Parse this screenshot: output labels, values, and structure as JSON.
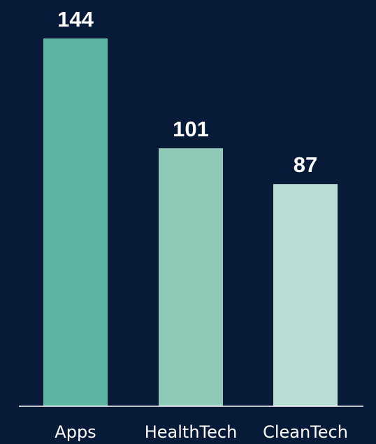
{
  "chart_data": {
    "type": "bar",
    "title": "",
    "xlabel": "",
    "ylabel": "",
    "categories": [
      "Apps",
      "HealthTech",
      "CleanTech"
    ],
    "values": [
      144,
      101,
      87
    ],
    "ylim": [
      0,
      144
    ],
    "grid": false,
    "legend": "none",
    "colors": [
      "#5bb5a2",
      "#8fcab8",
      "#b8ddd5"
    ],
    "background": "#071a38",
    "baseline_color": "#ffffff"
  }
}
